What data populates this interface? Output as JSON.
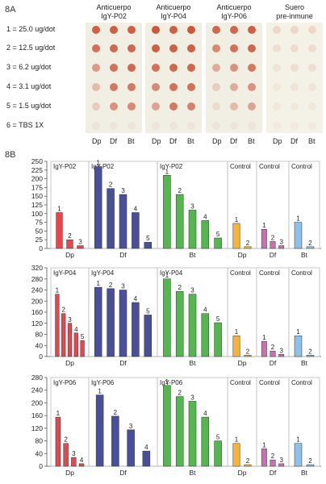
{
  "panel_a": {
    "label": "8A",
    "concentrations": [
      "1 = 25.0 ug/dot",
      "2 = 12.5 ug/dot",
      "3 = 6.2 ug/dot",
      "4 = 3.1 ug/dot",
      "5 = 1.5 ug/dot",
      "6 = TBS 1X"
    ],
    "membranes": [
      {
        "title_line1": "Anticuerpo",
        "title_line2": "IgY-P02",
        "col_labels": [
          "Dp",
          "Df",
          "Bt"
        ],
        "intensity": [
          [
            0.85,
            0.85,
            0.85
          ],
          [
            0.75,
            0.8,
            0.8
          ],
          [
            0.5,
            0.75,
            0.8
          ],
          [
            0.3,
            0.7,
            0.7
          ],
          [
            0.2,
            0.55,
            0.6
          ],
          [
            0.05,
            0.05,
            0.05
          ]
        ]
      },
      {
        "title_line1": "Anticuerpo",
        "title_line2": "IgY-P04",
        "col_labels": [
          "Dp",
          "Df",
          "Bt"
        ],
        "intensity": [
          [
            0.9,
            0.85,
            0.9
          ],
          [
            0.85,
            0.85,
            0.85
          ],
          [
            0.75,
            0.8,
            0.8
          ],
          [
            0.6,
            0.75,
            0.75
          ],
          [
            0.45,
            0.7,
            0.65
          ],
          [
            0.05,
            0.05,
            0.05
          ]
        ]
      },
      {
        "title_line1": "Anticuerpo",
        "title_line2": "IgY-P06",
        "col_labels": [
          "Dp",
          "Df",
          "Bt"
        ],
        "intensity": [
          [
            0.8,
            0.8,
            0.85
          ],
          [
            0.6,
            0.75,
            0.8
          ],
          [
            0.4,
            0.55,
            0.7
          ],
          [
            0.2,
            0.4,
            0.55
          ],
          [
            0.1,
            0.3,
            0.45
          ],
          [
            0.05,
            0.05,
            0.05
          ]
        ]
      },
      {
        "title_line1": "Suero",
        "title_line2": "pre-inmune",
        "col_labels": [
          "Dp",
          "Df",
          "Bt"
        ],
        "intensity": [
          [
            0.15,
            0.15,
            0.15
          ],
          [
            0.1,
            0.12,
            0.12
          ],
          [
            0.08,
            0.1,
            0.1
          ],
          [
            0.05,
            0.08,
            0.08
          ],
          [
            0.05,
            0.05,
            0.05
          ],
          [
            0.03,
            0.03,
            0.03
          ]
        ]
      }
    ]
  },
  "panel_b_label": "8B",
  "chart_data": [
    {
      "type": "bar",
      "ylim": [
        0,
        250
      ],
      "yticks": [
        0,
        25,
        50,
        75,
        100,
        125,
        150,
        175,
        200,
        225,
        250
      ],
      "group_headers": [
        "IgY-P02",
        "IgY-P02",
        "IgY-P02",
        "Control",
        "Control",
        "Control"
      ],
      "group_xlabels": [
        "Dp",
        "Df",
        "Bt",
        "Dp",
        "Df",
        "Bt"
      ],
      "groups": [
        {
          "color": "#e8454d",
          "values": [
            103,
            25,
            8
          ],
          "labels": [
            "1",
            "2",
            "3"
          ]
        },
        {
          "color": "#4a4f9a",
          "values": [
            235,
            172,
            155,
            103,
            18
          ],
          "labels": [
            "1",
            "2",
            "3",
            "4",
            "5"
          ]
        },
        {
          "color": "#55b54f",
          "values": [
            210,
            155,
            110,
            80,
            30
          ],
          "labels": [
            "1",
            "2",
            "3",
            "4",
            "5"
          ]
        },
        {
          "color": "#f4b43c",
          "values": [
            72,
            5
          ],
          "labels": [
            "1",
            "2"
          ]
        },
        {
          "color": "#cc6fb0",
          "values": [
            55,
            20,
            8
          ],
          "labels": [
            "1",
            "2",
            "3"
          ]
        },
        {
          "color": "#8fc0e6",
          "values": [
            75,
            5
          ],
          "labels": [
            "1",
            "2"
          ]
        }
      ]
    },
    {
      "type": "bar",
      "ylim": [
        0,
        320
      ],
      "yticks": [
        0,
        40,
        80,
        120,
        160,
        200,
        240,
        280,
        320
      ],
      "group_headers": [
        "IgY-P04",
        "IgY-P04",
        "IgY-P04",
        "Control",
        "Control",
        "Control"
      ],
      "group_xlabels": [
        "Dp",
        "Df",
        "Bt",
        "Dp",
        "Df",
        "Bt"
      ],
      "groups": [
        {
          "color": "#e8454d",
          "values": [
            225,
            155,
            120,
            85,
            58
          ],
          "labels": [
            "1",
            "2",
            "3",
            "4",
            "5"
          ]
        },
        {
          "color": "#4a4f9a",
          "values": [
            250,
            245,
            240,
            195,
            150
          ],
          "labels": [
            "1",
            "2",
            "3",
            "4",
            "5"
          ]
        },
        {
          "color": "#55b54f",
          "values": [
            280,
            235,
            225,
            155,
            122
          ],
          "labels": [
            "1",
            "2",
            "3",
            "4",
            "5"
          ]
        },
        {
          "color": "#f4b43c",
          "values": [
            75,
            5
          ],
          "labels": [
            "1",
            "2"
          ]
        },
        {
          "color": "#cc6fb0",
          "values": [
            55,
            20,
            8
          ],
          "labels": [
            "1",
            "2",
            "3"
          ]
        },
        {
          "color": "#8fc0e6",
          "values": [
            75,
            5
          ],
          "labels": [
            "1",
            "2"
          ]
        }
      ]
    },
    {
      "type": "bar",
      "ylim": [
        0,
        280
      ],
      "yticks": [
        0,
        40,
        80,
        120,
        160,
        200,
        240,
        280
      ],
      "group_headers": [
        "IgY-P06",
        "IgY-P06",
        "IgY-P06",
        "Control",
        "Control",
        "Control"
      ],
      "group_xlabels": [
        "Dp",
        "Df",
        "Bt",
        "Dp",
        "Df",
        "Bt"
      ],
      "groups": [
        {
          "color": "#e8454d",
          "values": [
            155,
            72,
            28,
            8
          ],
          "labels": [
            "1",
            "2",
            "3",
            "4"
          ]
        },
        {
          "color": "#4a4f9a",
          "values": [
            225,
            158,
            115,
            48
          ],
          "labels": [
            "1",
            "2",
            "3",
            "4"
          ]
        },
        {
          "color": "#55b54f",
          "values": [
            255,
            220,
            205,
            155,
            80
          ],
          "labels": [
            "1",
            "2",
            "3",
            "4",
            "5"
          ]
        },
        {
          "color": "#f4b43c",
          "values": [
            72,
            5
          ],
          "labels": [
            "1",
            "2"
          ]
        },
        {
          "color": "#cc6fb0",
          "values": [
            55,
            20,
            8
          ],
          "labels": [
            "1",
            "2",
            "3"
          ]
        },
        {
          "color": "#8fc0e6",
          "values": [
            72,
            5
          ],
          "labels": [
            "1",
            "2"
          ]
        }
      ]
    }
  ]
}
